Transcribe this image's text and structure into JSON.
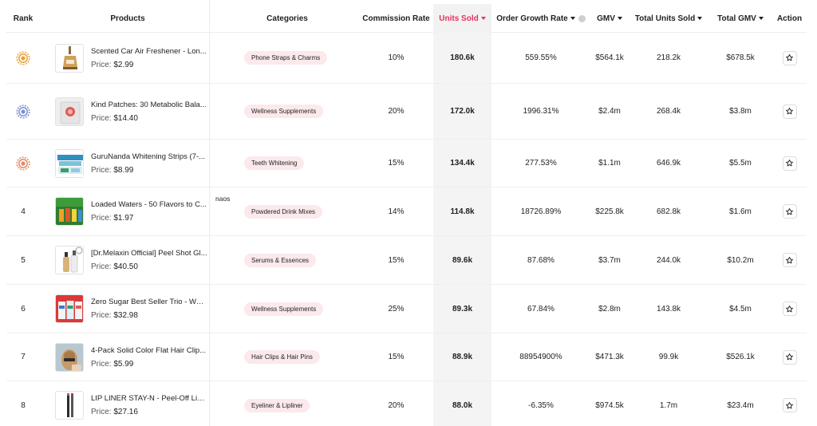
{
  "header": {
    "rank": "Rank",
    "products": "Products",
    "categories": "Categories",
    "commission_rate": "Commission Rate",
    "units_sold": "Units Sold",
    "order_growth_rate": "Order Growth Rate",
    "gmv": "GMV",
    "total_units_sold": "Total Units Sold",
    "total_gmv": "Total GMV",
    "action": "Action"
  },
  "price_label": "Price:",
  "stray_text": "naos",
  "colors": {
    "accent": "#e8305a",
    "category_bg": "#fbe9ec",
    "medal_gold": "#e9a23b",
    "medal_silver": "#7b8fd4",
    "medal_bronze": "#e08a6a"
  },
  "rows": [
    {
      "rank": "1",
      "medal": "gold",
      "name": "Scented Car Air Freshener - Lon...",
      "price": "$2.99",
      "category": "Phone Straps & Charms",
      "commission": "10%",
      "units": "180.6k",
      "growth": "559.55%",
      "gmv": "$564.1k",
      "total_units": "218.2k",
      "total_gmv": "$678.5k",
      "thumb": "air-freshener"
    },
    {
      "rank": "2",
      "medal": "silver",
      "name": "Kind Patches: 30 Metabolic Bala...",
      "price": "$14.40",
      "category": "Wellness Supplements",
      "commission": "20%",
      "units": "172.0k",
      "growth": "1996.31%",
      "gmv": "$2.4m",
      "total_units": "268.4k",
      "total_gmv": "$3.8m",
      "thumb": "patches"
    },
    {
      "rank": "3",
      "medal": "bronze",
      "name": "GuruNanda Whitening Strips (7-...",
      "price": "$8.99",
      "category": "Teeth Whitening",
      "commission": "15%",
      "units": "134.4k",
      "growth": "277.53%",
      "gmv": "$1.1m",
      "total_units": "646.9k",
      "total_gmv": "$5.5m",
      "thumb": "strips"
    },
    {
      "rank": "4",
      "medal": "",
      "name": "Loaded Waters - 50 Flavors to C...",
      "price": "$1.97",
      "category": "Powdered Drink Mixes",
      "commission": "14%",
      "units": "114.8k",
      "growth": "18726.89%",
      "gmv": "$225.8k",
      "total_units": "682.8k",
      "total_gmv": "$1.6m",
      "thumb": "waters"
    },
    {
      "rank": "5",
      "medal": "",
      "name": "[Dr.Melaxin Official] Peel Shot Gl...",
      "price": "$40.50",
      "category": "Serums & Essences",
      "commission": "15%",
      "units": "89.6k",
      "growth": "87.68%",
      "gmv": "$3.7m",
      "total_units": "244.0k",
      "total_gmv": "$10.2m",
      "thumb": "serum"
    },
    {
      "rank": "6",
      "medal": "",
      "name": "Zero Sugar Best Seller Trio - Wor...",
      "price": "$32.98",
      "category": "Wellness Supplements",
      "commission": "25%",
      "units": "89.3k",
      "growth": "67.84%",
      "gmv": "$2.8m",
      "total_units": "143.8k",
      "total_gmv": "$4.5m",
      "thumb": "trio"
    },
    {
      "rank": "7",
      "medal": "",
      "name": "4-Pack Solid Color Flat Hair Clip...",
      "price": "$5.99",
      "category": "Hair Clips & Hair Pins",
      "commission": "15%",
      "units": "88.9k",
      "growth": "88954900%",
      "gmv": "$471.3k",
      "total_units": "99.9k",
      "total_gmv": "$526.1k",
      "thumb": "hair"
    },
    {
      "rank": "8",
      "medal": "",
      "name": "LIP LINER STAY-N - Peel-Off Lip ...",
      "price": "$27.16",
      "category": "Eyeliner & Lipliner",
      "commission": "20%",
      "units": "88.0k",
      "growth": "-6.35%",
      "gmv": "$974.5k",
      "total_units": "1.7m",
      "total_gmv": "$23.4m",
      "thumb": "lipliner"
    }
  ]
}
